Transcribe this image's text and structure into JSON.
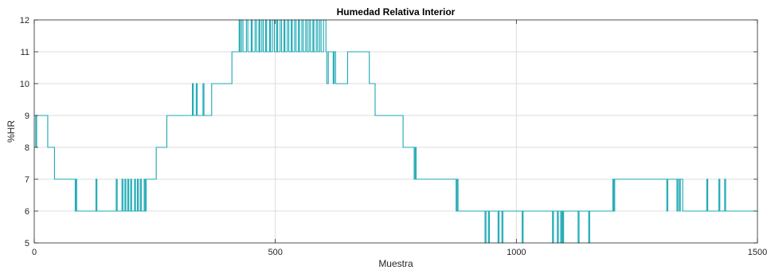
{
  "chart_data": {
    "type": "line",
    "title": "Humedad Relativa Interior",
    "xlabel": "Muestra",
    "ylabel": "%HR",
    "xlim": [
      0,
      1500
    ],
    "ylim": [
      5,
      12
    ],
    "xticks": [
      0,
      500,
      1000,
      1500
    ],
    "xtick_labels": [
      "0",
      "500",
      "1000",
      "1500"
    ],
    "yticks": [
      5,
      6,
      7,
      8,
      9,
      10,
      11,
      12
    ],
    "ytick_labels": [
      "5",
      "6",
      "7",
      "8",
      "9",
      "10",
      "11",
      "12"
    ],
    "grid": true,
    "line_color": "#1aa8b4",
    "series": [
      {
        "name": "",
        "points": [
          [
            0,
            9
          ],
          [
            3,
            9
          ],
          [
            3,
            8
          ],
          [
            5,
            8
          ],
          [
            5,
            9
          ],
          [
            28,
            9
          ],
          [
            28,
            8
          ],
          [
            42,
            8
          ],
          [
            42,
            7
          ],
          [
            85,
            7
          ],
          [
            85,
            6
          ],
          [
            87,
            6
          ],
          [
            87,
            7
          ],
          [
            88,
            7
          ],
          [
            88,
            6
          ],
          [
            128,
            6
          ],
          [
            128,
            7
          ],
          [
            130,
            7
          ],
          [
            130,
            6
          ],
          [
            170,
            6
          ],
          [
            170,
            7
          ],
          [
            172,
            7
          ],
          [
            172,
            6
          ],
          [
            182,
            6
          ],
          [
            182,
            7
          ],
          [
            184,
            7
          ],
          [
            184,
            6
          ],
          [
            188,
            6
          ],
          [
            188,
            7
          ],
          [
            190,
            7
          ],
          [
            190,
            6
          ],
          [
            194,
            6
          ],
          [
            194,
            7
          ],
          [
            196,
            7
          ],
          [
            196,
            6
          ],
          [
            200,
            6
          ],
          [
            200,
            7
          ],
          [
            202,
            7
          ],
          [
            202,
            6
          ],
          [
            208,
            6
          ],
          [
            208,
            7
          ],
          [
            210,
            7
          ],
          [
            210,
            6
          ],
          [
            214,
            6
          ],
          [
            214,
            7
          ],
          [
            216,
            7
          ],
          [
            216,
            6
          ],
          [
            220,
            6
          ],
          [
            220,
            7
          ],
          [
            222,
            7
          ],
          [
            222,
            6
          ],
          [
            228,
            6
          ],
          [
            228,
            7
          ],
          [
            230,
            7
          ],
          [
            230,
            6
          ],
          [
            232,
            6
          ],
          [
            232,
            7
          ],
          [
            253,
            7
          ],
          [
            253,
            8
          ],
          [
            275,
            8
          ],
          [
            275,
            9
          ],
          [
            328,
            9
          ],
          [
            328,
            10
          ],
          [
            330,
            10
          ],
          [
            330,
            9
          ],
          [
            336,
            9
          ],
          [
            336,
            10
          ],
          [
            338,
            10
          ],
          [
            338,
            9
          ],
          [
            350,
            9
          ],
          [
            350,
            10
          ],
          [
            352,
            10
          ],
          [
            352,
            9
          ],
          [
            368,
            9
          ],
          [
            368,
            10
          ],
          [
            410,
            10
          ],
          [
            410,
            11
          ],
          [
            425,
            11
          ],
          [
            425,
            12
          ],
          [
            427,
            12
          ],
          [
            427,
            11
          ],
          [
            430,
            11
          ],
          [
            430,
            12
          ],
          [
            433,
            12
          ],
          [
            433,
            11
          ],
          [
            440,
            11
          ],
          [
            440,
            12
          ],
          [
            443,
            12
          ],
          [
            443,
            11
          ],
          [
            450,
            11
          ],
          [
            450,
            12
          ],
          [
            452,
            12
          ],
          [
            452,
            11
          ],
          [
            458,
            11
          ],
          [
            458,
            12
          ],
          [
            461,
            12
          ],
          [
            461,
            11
          ],
          [
            466,
            11
          ],
          [
            466,
            12
          ],
          [
            468,
            12
          ],
          [
            468,
            11
          ],
          [
            472,
            11
          ],
          [
            472,
            12
          ],
          [
            475,
            12
          ],
          [
            475,
            11
          ],
          [
            480,
            11
          ],
          [
            480,
            12
          ],
          [
            482,
            12
          ],
          [
            482,
            11
          ],
          [
            488,
            11
          ],
          [
            488,
            12
          ],
          [
            490,
            12
          ],
          [
            490,
            11
          ],
          [
            494,
            11
          ],
          [
            494,
            12
          ],
          [
            498,
            12
          ],
          [
            498,
            11
          ],
          [
            503,
            11
          ],
          [
            503,
            12
          ],
          [
            505,
            12
          ],
          [
            505,
            11
          ],
          [
            510,
            11
          ],
          [
            510,
            12
          ],
          [
            513,
            12
          ],
          [
            513,
            11
          ],
          [
            518,
            11
          ],
          [
            518,
            12
          ],
          [
            520,
            12
          ],
          [
            520,
            11
          ],
          [
            525,
            11
          ],
          [
            525,
            12
          ],
          [
            528,
            12
          ],
          [
            528,
            11
          ],
          [
            533,
            11
          ],
          [
            533,
            12
          ],
          [
            535,
            12
          ],
          [
            535,
            11
          ],
          [
            540,
            11
          ],
          [
            540,
            12
          ],
          [
            543,
            12
          ],
          [
            543,
            11
          ],
          [
            548,
            11
          ],
          [
            548,
            12
          ],
          [
            550,
            12
          ],
          [
            550,
            11
          ],
          [
            555,
            11
          ],
          [
            555,
            12
          ],
          [
            558,
            12
          ],
          [
            558,
            11
          ],
          [
            563,
            11
          ],
          [
            563,
            12
          ],
          [
            566,
            12
          ],
          [
            566,
            11
          ],
          [
            570,
            11
          ],
          [
            570,
            12
          ],
          [
            573,
            12
          ],
          [
            573,
            11
          ],
          [
            578,
            11
          ],
          [
            578,
            12
          ],
          [
            580,
            12
          ],
          [
            580,
            11
          ],
          [
            585,
            11
          ],
          [
            585,
            12
          ],
          [
            588,
            12
          ],
          [
            588,
            11
          ],
          [
            592,
            11
          ],
          [
            592,
            12
          ],
          [
            595,
            12
          ],
          [
            595,
            11
          ],
          [
            600,
            11
          ],
          [
            600,
            12
          ],
          [
            605,
            12
          ],
          [
            605,
            11
          ],
          [
            607,
            11
          ],
          [
            607,
            10
          ],
          [
            610,
            10
          ],
          [
            610,
            11
          ],
          [
            620,
            11
          ],
          [
            620,
            10
          ],
          [
            622,
            10
          ],
          [
            622,
            11
          ],
          [
            625,
            11
          ],
          [
            625,
            10
          ],
          [
            650,
            10
          ],
          [
            650,
            11
          ],
          [
            695,
            11
          ],
          [
            695,
            10
          ],
          [
            707,
            10
          ],
          [
            707,
            9
          ],
          [
            765,
            9
          ],
          [
            765,
            8
          ],
          [
            788,
            8
          ],
          [
            788,
            7
          ],
          [
            790,
            7
          ],
          [
            790,
            8
          ],
          [
            792,
            8
          ],
          [
            792,
            7
          ],
          [
            875,
            7
          ],
          [
            875,
            6
          ],
          [
            877,
            6
          ],
          [
            877,
            7
          ],
          [
            879,
            7
          ],
          [
            879,
            6
          ],
          [
            935,
            6
          ],
          [
            935,
            5
          ],
          [
            937,
            5
          ],
          [
            937,
            6
          ],
          [
            942,
            6
          ],
          [
            942,
            5
          ],
          [
            944,
            5
          ],
          [
            944,
            6
          ],
          [
            962,
            6
          ],
          [
            962,
            5
          ],
          [
            964,
            5
          ],
          [
            964,
            6
          ],
          [
            970,
            6
          ],
          [
            970,
            5
          ],
          [
            972,
            5
          ],
          [
            972,
            6
          ],
          [
            1012,
            6
          ],
          [
            1012,
            5
          ],
          [
            1014,
            5
          ],
          [
            1014,
            6
          ],
          [
            1075,
            6
          ],
          [
            1075,
            5
          ],
          [
            1077,
            5
          ],
          [
            1077,
            6
          ],
          [
            1085,
            6
          ],
          [
            1085,
            5
          ],
          [
            1087,
            5
          ],
          [
            1087,
            6
          ],
          [
            1092,
            6
          ],
          [
            1092,
            5
          ],
          [
            1094,
            5
          ],
          [
            1094,
            6
          ],
          [
            1096,
            6
          ],
          [
            1096,
            5
          ],
          [
            1098,
            5
          ],
          [
            1098,
            6
          ],
          [
            1128,
            6
          ],
          [
            1128,
            5
          ],
          [
            1130,
            5
          ],
          [
            1130,
            6
          ],
          [
            1150,
            6
          ],
          [
            1150,
            5
          ],
          [
            1152,
            5
          ],
          [
            1152,
            6
          ],
          [
            1200,
            6
          ],
          [
            1200,
            7
          ],
          [
            1202,
            7
          ],
          [
            1202,
            6
          ],
          [
            1204,
            6
          ],
          [
            1204,
            7
          ],
          [
            1312,
            7
          ],
          [
            1312,
            6
          ],
          [
            1314,
            6
          ],
          [
            1314,
            7
          ],
          [
            1333,
            7
          ],
          [
            1333,
            6
          ],
          [
            1335,
            6
          ],
          [
            1335,
            7
          ],
          [
            1338,
            7
          ],
          [
            1338,
            6
          ],
          [
            1340,
            6
          ],
          [
            1340,
            7
          ],
          [
            1345,
            7
          ],
          [
            1345,
            6
          ],
          [
            1395,
            6
          ],
          [
            1395,
            7
          ],
          [
            1397,
            7
          ],
          [
            1397,
            6
          ],
          [
            1420,
            6
          ],
          [
            1420,
            7
          ],
          [
            1422,
            7
          ],
          [
            1422,
            6
          ],
          [
            1432,
            6
          ],
          [
            1432,
            7
          ],
          [
            1434,
            7
          ],
          [
            1434,
            6
          ],
          [
            1500,
            6
          ]
        ]
      }
    ]
  }
}
